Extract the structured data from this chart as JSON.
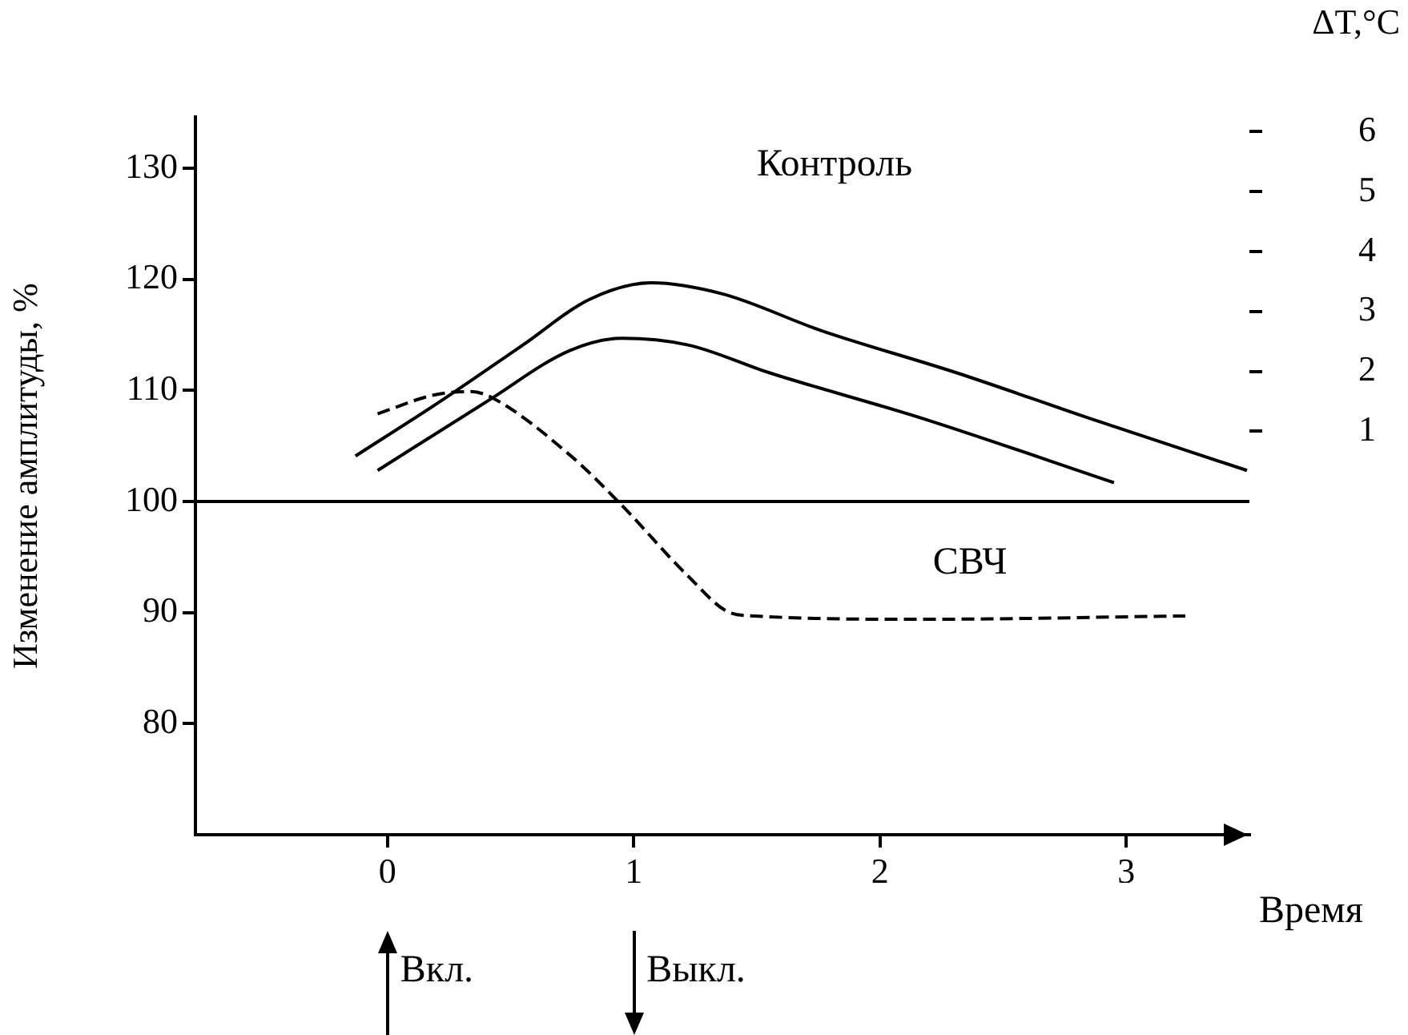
{
  "chart_data": {
    "type": "line",
    "xlabel": "Время",
    "ylabel": "Изменение амплитуды, %",
    "y2label": "ΔT,°C",
    "xlim": [
      -0.78,
      3.5
    ],
    "xticks": [
      0,
      1,
      2,
      3
    ],
    "ylim": [
      70,
      134.6
    ],
    "yticks": [
      80,
      90,
      100,
      110,
      120,
      130
    ],
    "y2lim": [
      -5.73,
      6.24
    ],
    "y2ticks": [
      1,
      2,
      3,
      4,
      5,
      6
    ],
    "grid": false,
    "legend": false,
    "marker": "none",
    "line_style": "solid",
    "ref_lines": [
      {
        "axis": "y",
        "value": 100,
        "color": "#000000"
      }
    ],
    "annotations": [
      "Вкл.",
      "Выкл."
    ],
    "series": [
      {
        "name": "Контроль",
        "color": "#000000",
        "x": [
          -0.13,
          0.22,
          0.55,
          0.82,
          1.07,
          1.36,
          1.76,
          2.31,
          2.85,
          3.49
        ],
        "values": [
          104.1,
          109.1,
          114.1,
          118.2,
          119.7,
          118.7,
          115.4,
          111.6,
          107.5,
          102.8
        ]
      },
      {
        "color": "#000000",
        "x": [
          -0.04,
          0.41,
          0.74,
          0.95,
          1.22,
          1.55,
          2.17,
          2.95
        ],
        "values": [
          102.8,
          109.1,
          113.6,
          114.7,
          114.1,
          111.6,
          107.5,
          101.7
        ]
      },
      {
        "name": "СВЧ",
        "color": "#000000",
        "line_style": "dashed",
        "x": [
          -0.04,
          0.19,
          0.34,
          0.42,
          0.74,
          0.95,
          1.22,
          1.39,
          1.49,
          2.17,
          3.24
        ],
        "values": [
          107.9,
          109.6,
          109.9,
          109.4,
          104.2,
          99.7,
          93.3,
          90.0,
          89.7,
          89.4,
          89.7
        ]
      }
    ]
  }
}
